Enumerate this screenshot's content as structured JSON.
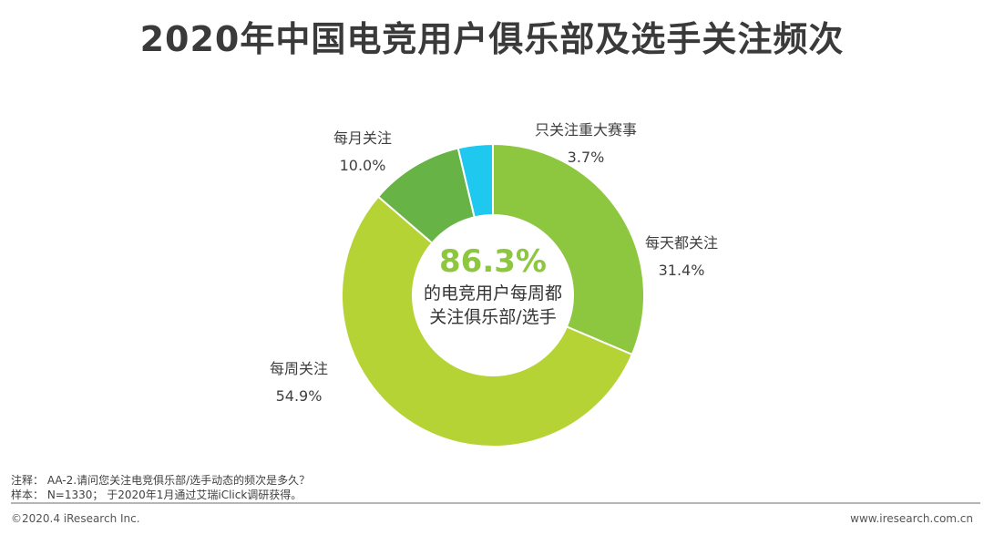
{
  "chart_data": {
    "type": "pie",
    "donut": true,
    "title": "2020年中国电竞用户俱乐部及选手关注频次",
    "slices": [
      {
        "label": "每天都关注",
        "value": 31.4,
        "value_label": "31.4%",
        "color": "#8dc63f"
      },
      {
        "label": "每周关注",
        "value": 54.9,
        "value_label": "54.9%",
        "color": "#b5d334"
      },
      {
        "label": "每月关注",
        "value": 10.0,
        "value_label": "10.0%",
        "color": "#67b346"
      },
      {
        "label": "只关注重大赛事",
        "value": 3.7,
        "value_label": "3.7%",
        "color": "#1ec8ef"
      }
    ],
    "center": {
      "value": "86.3%",
      "line1": "的电竞用户每周都",
      "line2": "关注俱乐部/选手"
    }
  },
  "notes": {
    "note": "注释：  AA-2.请问您关注电竞俱乐部/选手动态的频次是多久？",
    "sample": "样本：  N=1330；  于2020年1月通过艾瑞iClick调研获得。"
  },
  "footer": {
    "left": "©2020.4 iResearch Inc.",
    "right": "www.iresearch.com.cn"
  }
}
